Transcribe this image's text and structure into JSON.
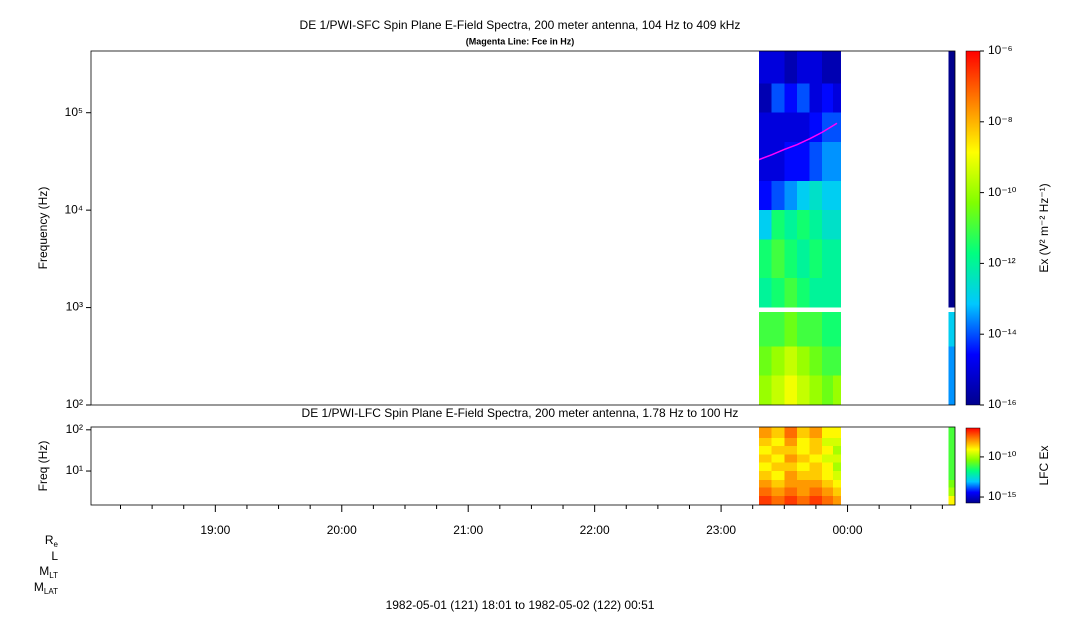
{
  "footer": "1982-05-01 (121) 18:01 to 1982-05-02 (122) 00:51",
  "ephemeris_labels": [
    [
      "R",
      "e"
    ],
    [
      "L"
    ],
    [
      "M",
      "LT"
    ],
    [
      "M",
      "LAT"
    ]
  ],
  "chart_data": [
    {
      "type": "spectrogram",
      "title": "DE 1/PWI-SFC  Spin Plane E-Field Spectra, 200 meter antenna, 104 Hz to 409 kHz",
      "subtitle": "(Magenta Line: Fce in Hz)",
      "ylabel": "Frequency (Hz)",
      "zlabel": "Ex (V² m⁻² Hz⁻¹)",
      "ylog": true,
      "xlim": [
        "1982-05-01 18:01",
        "1982-05-02 00:51"
      ],
      "ylim": [
        100,
        430000
      ],
      "yticks": [
        {
          "value": 100,
          "label": "10²"
        },
        {
          "value": 1000,
          "label": "10³"
        },
        {
          "value": 10000,
          "label": "10⁴"
        },
        {
          "value": 100000,
          "label": "10⁵"
        }
      ],
      "zlim": [
        1e-16,
        1e-06
      ],
      "zticks": [
        {
          "value": 1e-06,
          "label": "10⁻⁶"
        },
        {
          "value": 1e-08,
          "label": "10⁻⁸"
        },
        {
          "value": 1e-10,
          "label": "10⁻¹⁰"
        },
        {
          "value": 1e-12,
          "label": "10⁻¹²"
        },
        {
          "value": 1e-14,
          "label": "10⁻¹⁴"
        },
        {
          "value": 1e-16,
          "label": "10⁻¹⁶"
        }
      ],
      "colormap": [
        "#00008c",
        "#0000ff",
        "#00c8ff",
        "#00ff80",
        "#80ff00",
        "#ffff00",
        "#ff8000",
        "#ff0000"
      ],
      "time_bins": [
        "1982-05-01 23:18",
        "1982-05-01 23:24",
        "1982-05-01 23:30",
        "1982-05-01 23:36",
        "1982-05-01 23:42",
        "1982-05-01 23:48",
        "1982-05-01 23:53",
        "1982-05-01 23:57",
        "1982-05-02 00:48",
        "1982-05-02 00:51"
      ],
      "freq_bins": [
        100,
        200,
        400,
        900,
        1000,
        2000,
        5000,
        10000,
        20000,
        50000,
        100000,
        200000,
        430000
      ],
      "values": [
        [
          1e-10,
          3e-11,
          1e-11,
          null,
          1e-12,
          3e-12,
          1e-13,
          3e-15,
          1e-15,
          1e-15,
          3e-16,
          1e-15
        ],
        [
          3e-10,
          1e-10,
          1e-11,
          null,
          3e-12,
          1e-11,
          3e-12,
          1e-14,
          1e-15,
          1e-15,
          1e-14,
          1e-15
        ],
        [
          1e-09,
          3e-10,
          3e-11,
          null,
          1e-11,
          3e-12,
          1e-12,
          3e-14,
          3e-15,
          1e-15,
          3e-15,
          3e-16
        ],
        [
          3e-10,
          1e-10,
          1e-11,
          null,
          3e-12,
          1e-12,
          3e-12,
          1e-13,
          3e-15,
          1e-15,
          1e-14,
          1e-15
        ],
        [
          1e-10,
          3e-11,
          1e-11,
          null,
          1e-12,
          3e-12,
          1e-12,
          3e-13,
          1e-14,
          3e-15,
          1e-15,
          1e-15
        ],
        [
          3e-11,
          1e-11,
          3e-12,
          null,
          1e-12,
          1e-12,
          3e-13,
          1e-13,
          3e-14,
          1e-14,
          3e-15,
          3e-16
        ],
        [
          1e-10,
          1e-11,
          3e-12,
          null,
          1e-12,
          1e-12,
          3e-13,
          1e-13,
          3e-14,
          1e-14,
          1e-15,
          3e-16
        ],
        [
          null,
          null,
          null,
          null,
          null,
          null,
          null,
          null,
          null,
          null,
          null,
          null
        ],
        [
          3e-14,
          3e-14,
          1e-13,
          null,
          1e-16,
          1e-16,
          1e-16,
          1e-16,
          1e-16,
          1e-16,
          1e-16,
          1e-16
        ]
      ],
      "line": {
        "color": "#ff00ff",
        "x": [
          "1982-05-01 23:18",
          "1982-05-01 23:24",
          "1982-05-01 23:30",
          "1982-05-01 23:36",
          "1982-05-01 23:42",
          "1982-05-01 23:48",
          "1982-05-01 23:55"
        ],
        "values": [
          33000,
          37000,
          42000,
          47000,
          54000,
          63000,
          78000
        ]
      }
    },
    {
      "type": "spectrogram",
      "title": "DE 1/PWI-LFC  Spin Plane E-Field Spectra, 200 meter antenna, 1.78 Hz to 100 Hz",
      "ylabel": "Freq (Hz)",
      "zlabel": "LFC Ex",
      "ylog": true,
      "xlim": [
        "1982-05-01 18:01",
        "1982-05-02 00:51"
      ],
      "xticks": [
        {
          "value": "1982-05-01 19:00",
          "label": "19:00"
        },
        {
          "value": "1982-05-01 20:00",
          "label": "20:00"
        },
        {
          "value": "1982-05-01 21:00",
          "label": "21:00"
        },
        {
          "value": "1982-05-01 22:00",
          "label": "22:00"
        },
        {
          "value": "1982-05-01 23:00",
          "label": "23:00"
        },
        {
          "value": "1982-05-02 00:00",
          "label": "00:00"
        }
      ],
      "xminorticks": [
        "1982-05-01 18:15",
        "1982-05-01 18:30",
        "1982-05-01 18:45",
        "1982-05-01 19:15",
        "1982-05-01 19:30",
        "1982-05-01 19:45",
        "1982-05-01 20:15",
        "1982-05-01 20:30",
        "1982-05-01 20:45",
        "1982-05-01 21:15",
        "1982-05-01 21:30",
        "1982-05-01 21:45",
        "1982-05-01 22:15",
        "1982-05-01 22:30",
        "1982-05-01 22:45",
        "1982-05-01 23:15",
        "1982-05-01 23:30",
        "1982-05-01 23:45",
        "1982-05-02 00:15",
        "1982-05-02 00:30",
        "1982-05-02 00:45"
      ],
      "ylim": [
        1.5,
        117
      ],
      "yticks": [
        {
          "value": 10,
          "label": "10¹"
        },
        {
          "value": 100,
          "label": "10²"
        }
      ],
      "zlim": [
        1.8e-16,
        4e-07
      ],
      "zticks": [
        {
          "value": 1e-10,
          "label": "10⁻¹⁰"
        },
        {
          "value": 1e-15,
          "label": "10⁻¹⁵"
        }
      ],
      "colormap": [
        "#00008c",
        "#0000ff",
        "#00c8ff",
        "#00ff80",
        "#80ff00",
        "#ffff00",
        "#ff8000",
        "#ff0000"
      ],
      "time_bins": [
        "1982-05-01 23:18",
        "1982-05-01 23:24",
        "1982-05-01 23:30",
        "1982-05-01 23:36",
        "1982-05-01 23:42",
        "1982-05-01 23:48",
        "1982-05-01 23:53",
        "1982-05-01 23:57",
        "1982-05-02 00:48",
        "1982-05-02 00:51"
      ],
      "freq_bins": [
        1.5,
        2.5,
        4,
        6,
        10,
        16,
        25,
        40,
        63,
        117
      ],
      "values": [
        [
          1e-07,
          3e-08,
          1e-08,
          3e-09,
          1e-09,
          3e-09,
          1e-09,
          3e-09,
          1e-08
        ],
        [
          3e-08,
          1e-08,
          3e-09,
          1e-09,
          3e-09,
          1e-09,
          3e-09,
          1e-09,
          3e-09
        ],
        [
          1e-07,
          3e-08,
          1e-08,
          1e-08,
          3e-09,
          1e-08,
          3e-09,
          1e-08,
          3e-08
        ],
        [
          3e-08,
          1e-08,
          1e-08,
          3e-09,
          1e-09,
          3e-09,
          1e-09,
          1e-09,
          3e-09
        ],
        [
          1e-07,
          3e-08,
          1e-08,
          3e-09,
          3e-09,
          1e-09,
          3e-09,
          3e-09,
          1e-08
        ],
        [
          3e-08,
          1e-08,
          3e-09,
          1e-09,
          1e-09,
          3e-10,
          1e-09,
          3e-10,
          1e-09
        ],
        [
          1e-08,
          3e-09,
          1e-09,
          3e-10,
          1e-10,
          3e-10,
          1e-10,
          3e-10,
          1e-09
        ],
        [
          null,
          null,
          null,
          null,
          null,
          null,
          null,
          null,
          null
        ],
        [
          1e-09,
          1e-10,
          3e-11,
          1e-11,
          1e-11,
          1e-11,
          1e-11,
          1e-11,
          1e-11
        ]
      ]
    }
  ]
}
